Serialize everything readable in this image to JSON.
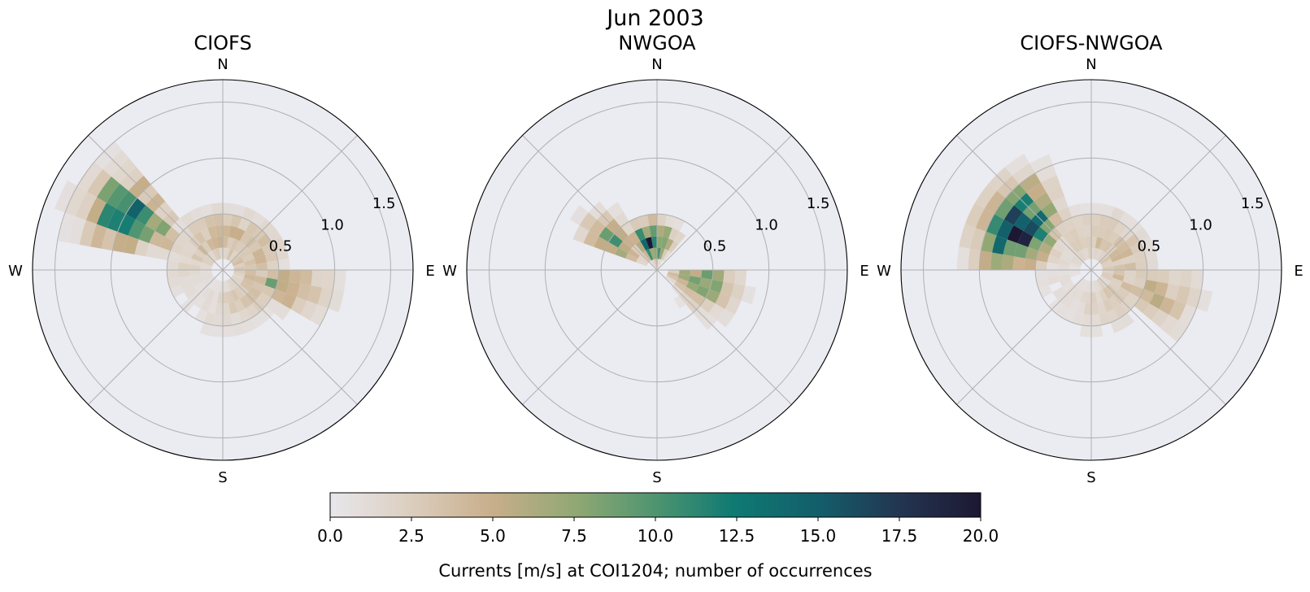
{
  "figure": {
    "suptitle": "Jun 2003"
  },
  "chart_data": [
    {
      "type": "heatmap",
      "subtype": "polar-rose-histogram",
      "title": "CIOFS",
      "compass_labels": [
        "N",
        "E",
        "S",
        "W"
      ],
      "radial_ticks": [
        0.5,
        1.0,
        1.5
      ],
      "radial_tick_labels": [
        "0.5",
        "1.0",
        "1.5"
      ],
      "rmax": 1.7,
      "grid": true,
      "colormap_range": [
        0,
        20
      ],
      "clusters": [
        {
          "dir_start": 285,
          "dir_end": 320,
          "r_start": 0.2,
          "r_end": 1.7,
          "peak": 15.5,
          "peak_dir": 300,
          "peak_r": 0.95,
          "spread": 0.45
        },
        {
          "dir_start": 90,
          "dir_end": 125,
          "r_start": 0.2,
          "r_end": 1.4,
          "peak": 8.5,
          "peak_dir": 105,
          "peak_r": 0.55,
          "spread": 0.45
        },
        {
          "dir_start": 0,
          "dir_end": 360,
          "r_start": 0.1,
          "r_end": 0.55,
          "peak": 5.0,
          "peak_dir": 45,
          "peak_r": 0.3,
          "spread": 0.3
        }
      ]
    },
    {
      "type": "heatmap",
      "subtype": "polar-rose-histogram",
      "title": "NWGOA",
      "compass_labels": [
        "N",
        "E",
        "S",
        "W"
      ],
      "radial_ticks": [
        0.5,
        1.0,
        1.5
      ],
      "radial_tick_labels": [
        "0.5",
        "1.0",
        "1.5"
      ],
      "rmax": 1.7,
      "grid": true,
      "colormap_range": [
        0,
        20
      ],
      "clusters": [
        {
          "dir_start": 290,
          "dir_end": 330,
          "r_start": 0.15,
          "r_end": 1.0,
          "peak": 9.0,
          "peak_dir": 305,
          "peak_r": 0.45,
          "spread": 0.35
        },
        {
          "dir_start": 320,
          "dir_end": 40,
          "r_start": 0.05,
          "r_end": 0.45,
          "peak": 17.0,
          "peak_dir": 350,
          "peak_r": 0.25,
          "spread": 0.2
        },
        {
          "dir_start": 90,
          "dir_end": 150,
          "r_start": 0.1,
          "r_end": 1.0,
          "peak": 9.0,
          "peak_dir": 105,
          "peak_r": 0.4,
          "spread": 0.35
        }
      ]
    },
    {
      "type": "heatmap",
      "subtype": "polar-rose-histogram",
      "title": "CIOFS-NWGOA",
      "compass_labels": [
        "N",
        "E",
        "S",
        "W"
      ],
      "radial_ticks": [
        0.5,
        1.0,
        1.5
      ],
      "radial_tick_labels": [
        "0.5",
        "1.0",
        "1.5"
      ],
      "rmax": 1.7,
      "grid": true,
      "colormap_range": [
        0,
        20
      ],
      "clusters": [
        {
          "dir_start": 270,
          "dir_end": 335,
          "r_start": 0.15,
          "r_end": 1.35,
          "peak": 20.0,
          "peak_dir": 300,
          "peak_r": 0.75,
          "spread": 0.35
        },
        {
          "dir_start": 90,
          "dir_end": 140,
          "r_start": 0.15,
          "r_end": 1.2,
          "peak": 5.0,
          "peak_dir": 110,
          "peak_r": 0.6,
          "spread": 0.45
        },
        {
          "dir_start": 0,
          "dir_end": 360,
          "r_start": 0.1,
          "r_end": 0.6,
          "peak": 4.0,
          "peak_dir": 60,
          "peak_r": 0.3,
          "spread": 0.3
        }
      ]
    }
  ],
  "colorbar": {
    "label": "Currents [m/s] at COI1204; number of occurrences",
    "vmin": 0,
    "vmax": 20,
    "ticks": [
      0,
      2.5,
      5,
      7.5,
      10,
      12.5,
      15,
      17.5,
      20
    ],
    "tick_labels": [
      "0.0",
      "2.5",
      "5.0",
      "7.5",
      "10.0",
      "12.5",
      "15.0",
      "17.5",
      "20.0"
    ],
    "colormap_stops": [
      {
        "v": 0.0,
        "color": "#e8e7ec"
      },
      {
        "v": 0.12,
        "color": "#dccfc0"
      },
      {
        "v": 0.25,
        "color": "#c8ae8a"
      },
      {
        "v": 0.38,
        "color": "#8fa873"
      },
      {
        "v": 0.5,
        "color": "#4e9470"
      },
      {
        "v": 0.62,
        "color": "#0f7a72"
      },
      {
        "v": 0.75,
        "color": "#135e6a"
      },
      {
        "v": 0.88,
        "color": "#233450"
      },
      {
        "v": 1.0,
        "color": "#1c1833"
      }
    ]
  }
}
